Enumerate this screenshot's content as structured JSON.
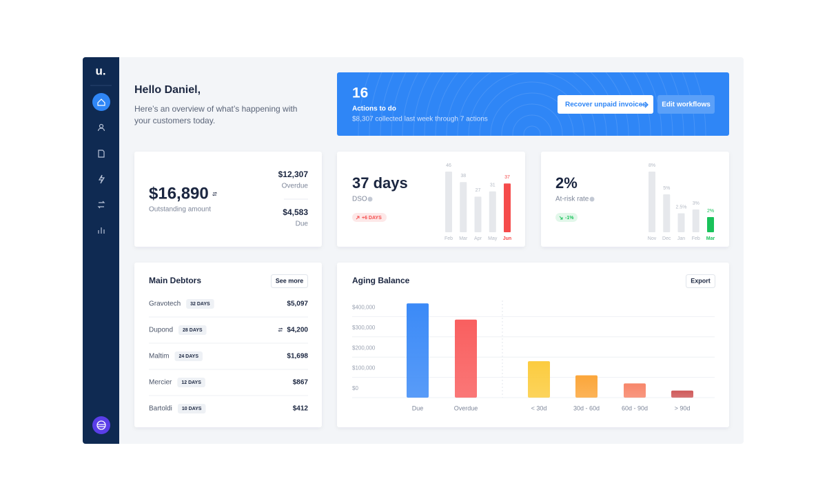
{
  "sidebar": {
    "logo": "u."
  },
  "greeting": {
    "title": "Hello Daniel,",
    "subtitle_lines": [
      "Here’s an overview of what’s happening with",
      "your customers today."
    ]
  },
  "banner": {
    "count": 16,
    "label": "Actions to do",
    "note": "$8,307 collected last week through 7 actions",
    "buttons": [
      "Recover unpaid invoices",
      "Edit workflows"
    ]
  },
  "outstanding": {
    "amount": "$16,890",
    "label": "Outstanding amount",
    "breakdown": [
      {
        "amount": "$12,307",
        "label": "Overdue"
      },
      {
        "amount": "$4,583",
        "label": "Due"
      }
    ]
  },
  "dso": {
    "value": "37 days",
    "label": "DSO",
    "badge": "+6 DAYS",
    "chart": {
      "type": "bar",
      "categories": [
        "Feb",
        "Mar",
        "Apr",
        "May",
        "Jun"
      ],
      "values": [
        46,
        38,
        27,
        31,
        37
      ],
      "color": "#e6e8ec",
      "highlight_color": "#f54b4b"
    }
  },
  "risk": {
    "value": "2%",
    "label": "At-risk rate",
    "badge": "-1%",
    "chart": {
      "type": "bar",
      "categories": [
        "Nov",
        "Dec",
        "Jan",
        "Feb",
        "Mar"
      ],
      "values": [
        8,
        5,
        2.5,
        3,
        2
      ],
      "value_labels": [
        "8%",
        "5%",
        "2.5%",
        "3%",
        "2%"
      ],
      "color": "#e6e8ec",
      "highlight_color": "#19c25a"
    }
  },
  "debtors": {
    "title": "Main Debtors",
    "button": "See more",
    "rows": [
      [
        "Gravotech",
        "32 DAYS",
        "$5,097"
      ],
      [
        "Dupond",
        "28 DAYS",
        "$4,200"
      ],
      [
        "Maltim",
        "24 DAYS",
        "$1,698"
      ],
      [
        "Mercier",
        "12 DAYS",
        "$867"
      ],
      [
        "Bartoldi",
        "10 DAYS",
        "$412"
      ]
    ]
  },
  "aging": {
    "title": "Aging Balance",
    "button": "Export",
    "chart": {
      "type": "bar",
      "categories": [
        "Due",
        "Overdue",
        "< 30d",
        "30d - 60d",
        "60d - 90d",
        "> 90d"
      ],
      "values": [
        465000,
        385000,
        180000,
        110000,
        70000,
        35000
      ],
      "colors": [
        "#3b8af7",
        "#f95f5f",
        "#fccc3f",
        "#fba63a",
        "#f7866a",
        "#cf5a5a"
      ],
      "ylim": [
        0,
        500000
      ],
      "yticks": [
        {
          "value": 0,
          "label": "$0"
        },
        {
          "value": 100000,
          "label": "$100,000"
        },
        {
          "value": 200000,
          "label": "$200,000"
        },
        {
          "value": 300000,
          "label": "$300,000"
        },
        {
          "value": 400000,
          "label": "$400,000"
        }
      ],
      "grid": true
    }
  }
}
